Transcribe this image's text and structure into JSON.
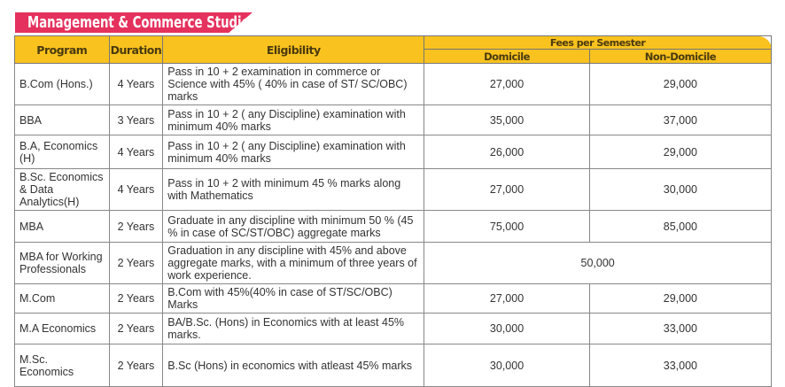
{
  "title": "Management & Commerce Studies",
  "headers": {
    "program": "Program",
    "duration": "Duration",
    "eligibility": "Eligibility",
    "fees": "Fees per Semester",
    "domicile": "Domicile",
    "non_domicile": "Non-Domicile"
  },
  "rows": [
    {
      "program": "B.Com (Hons.)",
      "duration": "4 Years",
      "eligibility": "Pass in 10 + 2 examination in commerce or Science with 45% ( 40% in case of ST/ SC/OBC) marks",
      "domicile": "27,000",
      "non_domicile": "29,000"
    },
    {
      "program": "BBA",
      "duration": "3 Years",
      "eligibility": "Pass in 10 + 2 ( any Discipline) examination with minimum 40% marks",
      "domicile": "35,000",
      "non_domicile": "37,000"
    },
    {
      "program": "B.A, Economics (H)",
      "duration": "4 Years",
      "eligibility": "Pass in 10 + 2 ( any Discipline) examination with minimum 40% marks",
      "domicile": "26,000",
      "non_domicile": "29,000"
    },
    {
      "program": "B.Sc. Economics & Data Analytics(H)",
      "duration": "4 Years",
      "eligibility": "Pass in 10 + 2 with minimum 45 % marks along with Mathematics",
      "domicile": "27,000",
      "non_domicile": "30,000"
    },
    {
      "program": "MBA",
      "duration": "2 Years",
      "eligibility": "Graduate in any discipline with minimum 50 % (45 % in case of SC/ST/OBC) aggregate marks",
      "domicile": "75,000",
      "non_domicile": "85,000"
    },
    {
      "program": "MBA for Working Professionals",
      "duration": "2 Years",
      "eligibility": "Graduation in any discipline with 45% and above aggregate marks, with a minimum of three years of work experience.",
      "fee": "50,000"
    },
    {
      "program": "M.Com",
      "duration": "2 Years",
      "eligibility": "B.Com with 45%(40% in case of ST/SC/OBC) Marks",
      "domicile": "27,000",
      "non_domicile": "29,000"
    },
    {
      "program": "M.A Economics",
      "duration": "2 Years",
      "eligibility": "BA/B.Sc. (Hons) in Economics with at least 45% marks.",
      "domicile": "30,000",
      "non_domicile": "33,000"
    },
    {
      "program": "M.Sc. Economics",
      "duration": "2 Years",
      "eligibility": "B.Sc (Hons) in economics with atleast 45% marks",
      "domicile": "30,000",
      "non_domicile": "33,000"
    }
  ]
}
